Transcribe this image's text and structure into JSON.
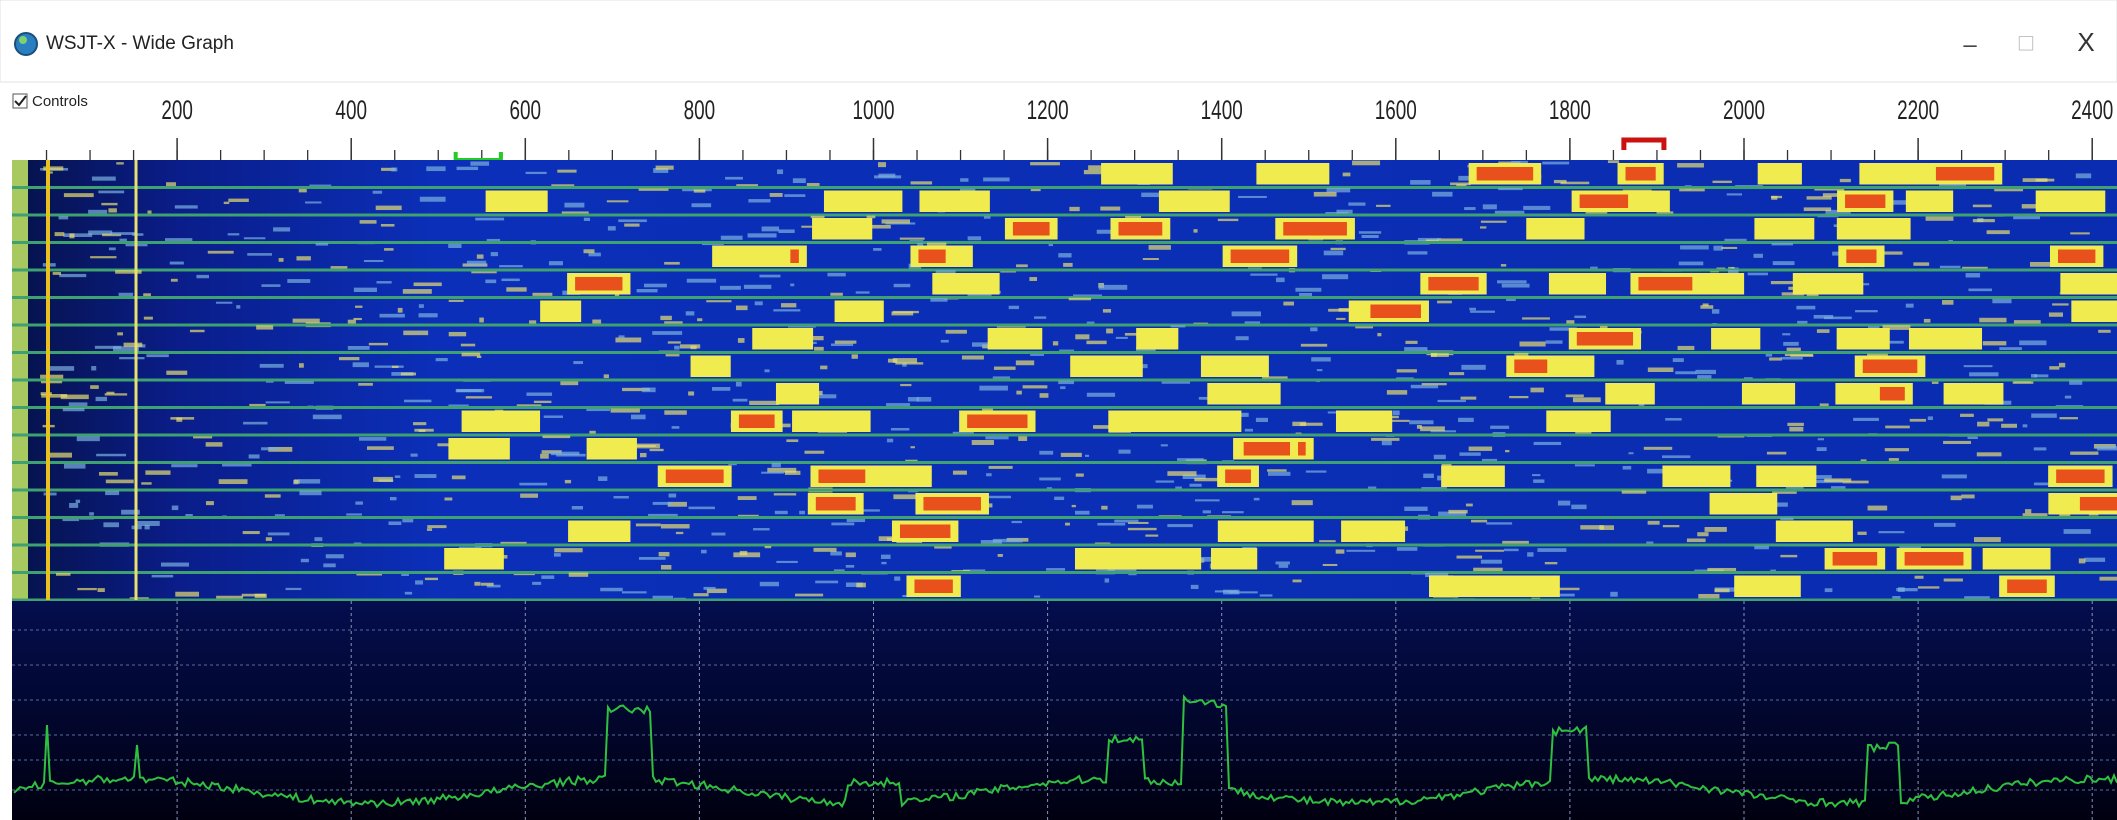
{
  "window": {
    "title": "WSJT-X - Wide Graph",
    "buttons": [
      "–",
      "□",
      "X"
    ]
  },
  "controls": {
    "label": "Controls",
    "checked": true
  },
  "frequency_scale": {
    "ticks": [
      200,
      400,
      600,
      800,
      1000,
      1200,
      1400,
      1600,
      1800,
      2000,
      2200,
      2400
    ]
  }
}
